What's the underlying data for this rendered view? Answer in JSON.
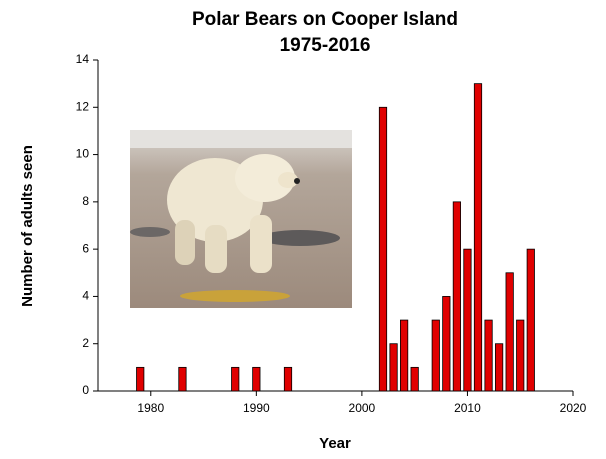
{
  "chart_data": {
    "type": "bar",
    "title": "Polar Bears on Cooper Island",
    "subtitle": "1975-2016",
    "x_label": "Year",
    "y_label": "Number of adults seen",
    "x": [
      1979,
      1983,
      1988,
      1990,
      1993,
      2002,
      2003,
      2004,
      2005,
      2007,
      2008,
      2009,
      2010,
      2011,
      2012,
      2013,
      2014,
      2015,
      2016
    ],
    "values": [
      1,
      1,
      1,
      1,
      1,
      12,
      2,
      3,
      1,
      3,
      4,
      8,
      6,
      13,
      3,
      2,
      5,
      3,
      6
    ],
    "color": "#e00000",
    "xlim": [
      1975,
      2020
    ],
    "xticks": [
      1980,
      1990,
      2000,
      2010,
      2020
    ],
    "ylim": [
      0,
      14
    ],
    "yticks": [
      0,
      2,
      4,
      6,
      8,
      10,
      12,
      14
    ],
    "grid": false
  }
}
